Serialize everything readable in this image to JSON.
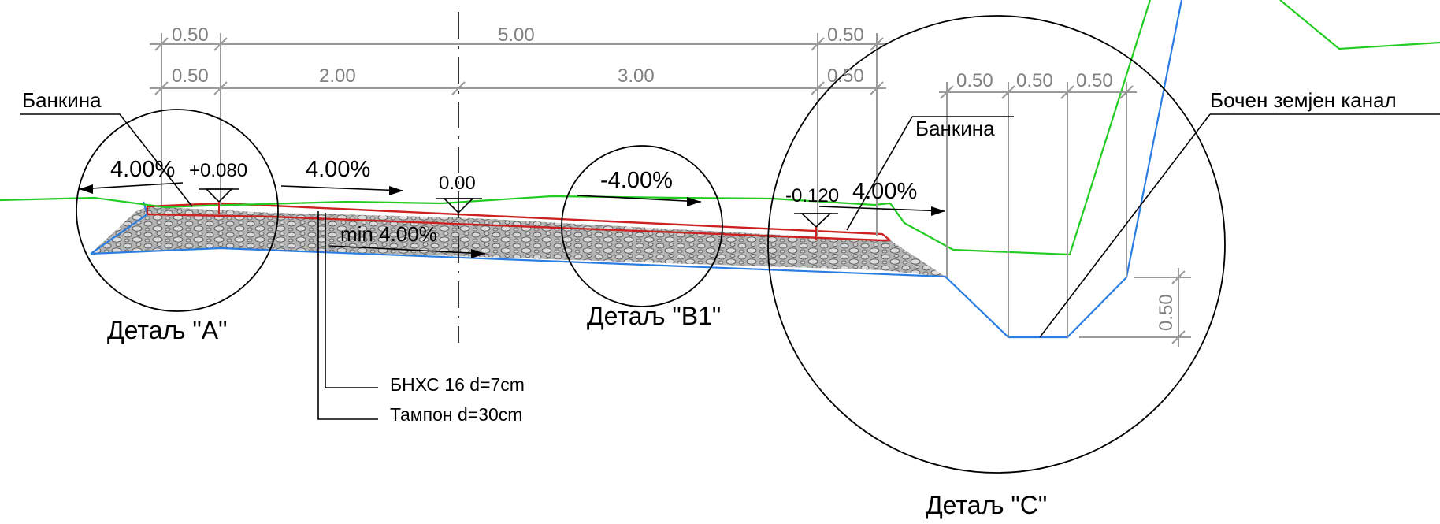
{
  "colors": {
    "terrain": "#22cc22",
    "asphalt": "#cc2222",
    "subgrade": "#2a7de1",
    "dimension": "#808080",
    "hatch_fill": "#b4b4b4"
  },
  "dimensions": {
    "top_left": "0.50",
    "top_total": "5.00",
    "top_right": "0.50",
    "row2_left": "0.50",
    "row2_lane_left": "2.00",
    "row2_lane_right": "3.00",
    "row2_right": "0.50",
    "ditch_1": "0.50",
    "ditch_2": "0.50",
    "ditch_3": "0.50",
    "ditch_depth": "0.50"
  },
  "labels": {
    "shoulder_left": "Банкина",
    "shoulder_right": "Банкина",
    "side_ditch": "Бочен земјен канал"
  },
  "slopes": {
    "shoulder_left": "4.00%",
    "lane_left": "4.00%",
    "lane_right": "-4.00%",
    "shoulder_right": "4.00%",
    "subgrade": "min 4.00%"
  },
  "elevations": {
    "left": "+0.080",
    "axis": "0.00",
    "right": "-0.120"
  },
  "details": {
    "a": "Детаљ \"A\"",
    "b1": "Детаљ \"B1\"",
    "c": "Детаљ \"C\""
  },
  "layers": [
    "БНХС 16 d=7cm",
    "Тампон d=30cm"
  ]
}
